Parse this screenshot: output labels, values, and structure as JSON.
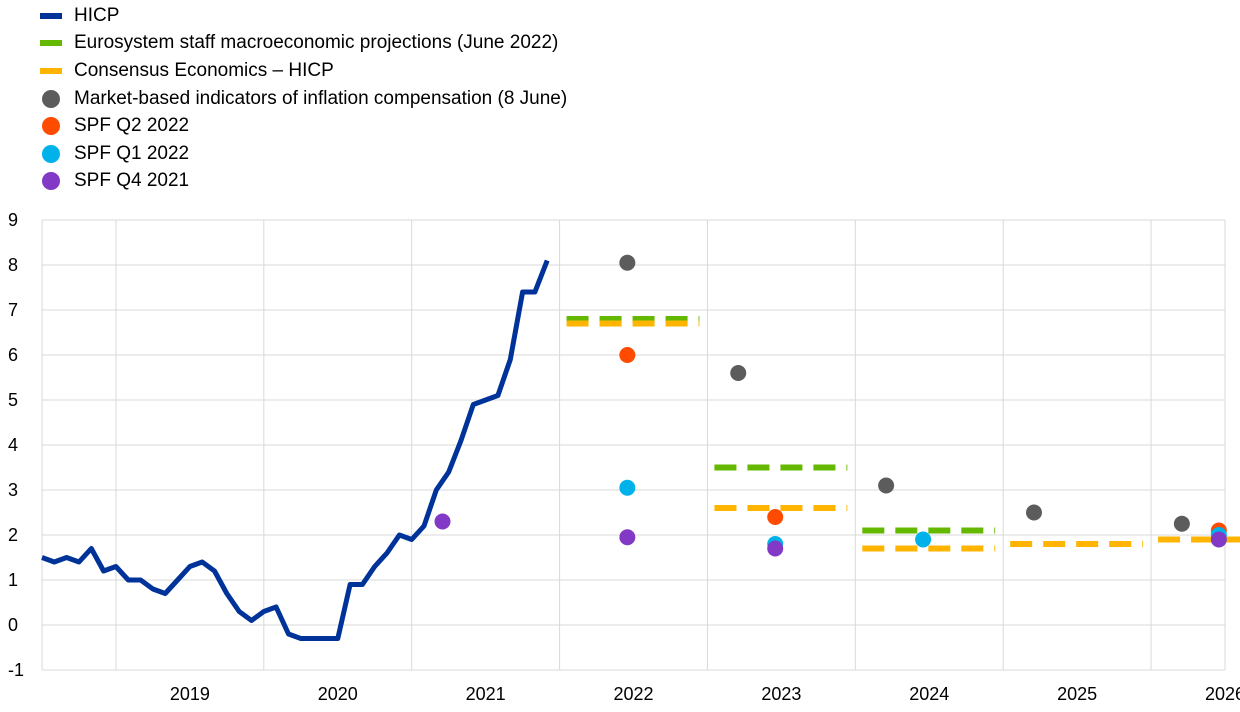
{
  "chart_data": {
    "type": "line",
    "title": "",
    "xlabel": "",
    "ylabel": "",
    "ylim": [
      -1,
      9
    ],
    "yticks": [
      -1,
      0,
      1,
      2,
      3,
      4,
      5,
      6,
      7,
      8,
      9
    ],
    "xlim": [
      2018.5,
      2026.5
    ],
    "year_labels": [
      "2019",
      "2020",
      "2021",
      "2022",
      "2023",
      "2024",
      "2025",
      "2026"
    ],
    "grid": true,
    "legend_position": "top-left",
    "colors": {
      "hicp": "#003399",
      "eurosystem": "#65b800",
      "consensus": "#ffb400",
      "market": "#5c5c5c",
      "spf_q2_2022": "#ff4b00",
      "spf_q1_2022": "#00b1ea",
      "spf_q4_2021": "#8139c6"
    },
    "legend": [
      {
        "key": "hicp",
        "label": "HICP",
        "style": "line"
      },
      {
        "key": "eurosystem",
        "label": "Eurosystem staff macroeconomic projections (June 2022)",
        "style": "dash"
      },
      {
        "key": "consensus",
        "label": "Consensus Economics – HICP",
        "style": "dash"
      },
      {
        "key": "market",
        "label": "Market-based indicators of inflation compensation (8 June)",
        "style": "dot"
      },
      {
        "key": "spf_q2_2022",
        "label": "SPF Q2 2022",
        "style": "dot"
      },
      {
        "key": "spf_q1_2022",
        "label": "SPF Q1 2022",
        "style": "dot"
      },
      {
        "key": "spf_q4_2021",
        "label": "SPF Q4 2021",
        "style": "dot"
      }
    ],
    "hicp": {
      "start": "2018-07",
      "values": [
        1.5,
        1.4,
        1.5,
        1.4,
        1.7,
        1.2,
        1.3,
        1.0,
        1.0,
        0.8,
        0.7,
        1.0,
        1.3,
        1.4,
        1.2,
        0.7,
        0.3,
        0.1,
        0.3,
        0.4,
        -0.2,
        -0.3,
        -0.3,
        -0.3,
        -0.3,
        0.9,
        0.9,
        1.3,
        1.6,
        2.0,
        1.9,
        2.2,
        3.0,
        3.4,
        4.1,
        4.9,
        5.0,
        5.1,
        5.9,
        7.4,
        7.4,
        8.1
      ]
    },
    "eurosystem": [
      {
        "year": "2022",
        "value": 6.8
      },
      {
        "year": "2023",
        "value": 3.5
      },
      {
        "year": "2024",
        "value": 2.1
      }
    ],
    "consensus": [
      {
        "year": "2022",
        "value": 6.7
      },
      {
        "year": "2023",
        "value": 2.6
      },
      {
        "year": "2024",
        "value": 1.7
      },
      {
        "year": "2025",
        "value": 1.8
      },
      {
        "year": "2026",
        "value": 1.9
      }
    ],
    "market": [
      {
        "x": "2022-06",
        "value": 8.05
      },
      {
        "x": "2023-03",
        "value": 5.6
      },
      {
        "x": "2024-03",
        "value": 3.1
      },
      {
        "x": "2025-03",
        "value": 2.5
      },
      {
        "x": "2026-03",
        "value": 2.25
      }
    ],
    "spf_q2_2022": [
      {
        "x": "2022-06",
        "value": 6.0
      },
      {
        "x": "2023-06",
        "value": 2.4
      },
      {
        "x": "2026-06",
        "value": 2.1
      }
    ],
    "spf_q1_2022": [
      {
        "x": "2022-06",
        "value": 3.05
      },
      {
        "x": "2023-06",
        "value": 1.8
      },
      {
        "x": "2024-06",
        "value": 1.9
      },
      {
        "x": "2026-06",
        "value": 2.0
      }
    ],
    "spf_q4_2021": [
      {
        "x": "2021-03",
        "value": 2.3
      },
      {
        "x": "2022-06",
        "value": 1.95
      },
      {
        "x": "2023-06",
        "value": 1.7
      },
      {
        "x": "2026-06",
        "value": 1.9
      }
    ]
  }
}
